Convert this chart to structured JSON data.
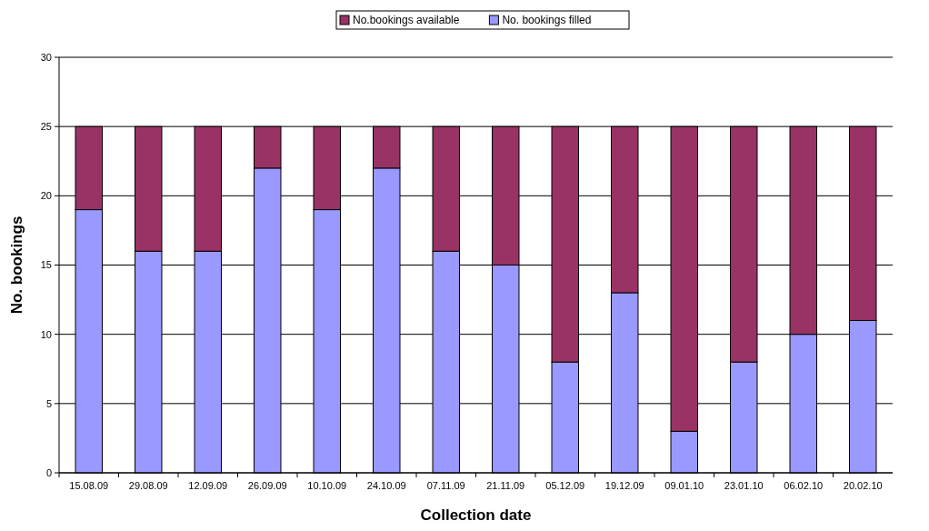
{
  "chart_data": {
    "type": "bar",
    "stacked": true,
    "xlabel": "Collection date",
    "ylabel": "No. bookings",
    "categories": [
      "15.08.09",
      "29.08.09",
      "12.09.09",
      "26.09.09",
      "10.10.09",
      "24.10.09",
      "07.11.09",
      "21.11.09",
      "05.12.09",
      "19.12.09",
      "09.01.10",
      "23.01.10",
      "06.02.10",
      "20.02.10"
    ],
    "series": [
      {
        "name": "No. bookings filled",
        "color": "#9999ff",
        "values": [
          19,
          16,
          16,
          22,
          19,
          22,
          16,
          15,
          8,
          13,
          3,
          8,
          10,
          11
        ]
      },
      {
        "name": "No.bookings available",
        "color": "#993366",
        "values": [
          6,
          9,
          9,
          3,
          6,
          3,
          9,
          10,
          17,
          12,
          22,
          17,
          15,
          14
        ]
      }
    ],
    "ylim": [
      0,
      30
    ],
    "yticks": [
      0,
      5,
      10,
      15,
      20,
      25,
      30
    ],
    "grid": "y",
    "legend": "top"
  }
}
